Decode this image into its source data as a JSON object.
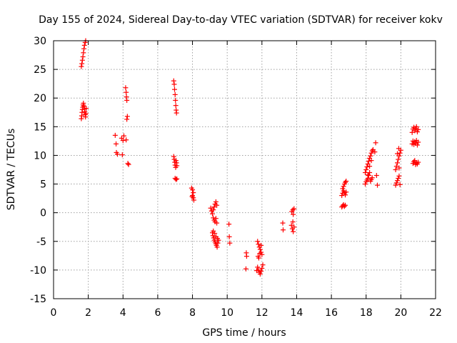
{
  "chart_data": {
    "type": "scatter",
    "title": "Day 155 of 2024, Sidereal Day-to-day VTEC variation (SDTVAR) for receiver kokv",
    "xlabel": "GPS time / hours",
    "ylabel": "SDTVAR / TECUs",
    "xlim": [
      0,
      22
    ],
    "ylim": [
      -15,
      30
    ],
    "xticks": [
      0,
      2,
      4,
      6,
      8,
      10,
      12,
      14,
      16,
      18,
      20,
      22
    ],
    "yticks": [
      -15,
      -10,
      -5,
      0,
      5,
      10,
      15,
      20,
      25,
      30
    ],
    "grid": true,
    "marker": "+",
    "series": [
      {
        "name": "SDTVAR",
        "color": "#ff0000",
        "points": [
          [
            1.6,
            25.5
          ],
          [
            1.63,
            26.0
          ],
          [
            1.66,
            26.6
          ],
          [
            1.69,
            27.2
          ],
          [
            1.72,
            27.9
          ],
          [
            1.75,
            28.6
          ],
          [
            1.78,
            29.2
          ],
          [
            1.82,
            29.7
          ],
          [
            1.85,
            30.0
          ],
          [
            1.6,
            16.4
          ],
          [
            1.62,
            16.9
          ],
          [
            1.64,
            17.5
          ],
          [
            1.66,
            18.0
          ],
          [
            1.68,
            18.4
          ],
          [
            1.7,
            18.8
          ],
          [
            1.72,
            19.1
          ],
          [
            1.75,
            18.6
          ],
          [
            1.78,
            18.1
          ],
          [
            1.8,
            17.6
          ],
          [
            1.82,
            17.1
          ],
          [
            1.84,
            16.7
          ],
          [
            1.86,
            17.3
          ],
          [
            1.88,
            18.2
          ],
          [
            3.55,
            13.5
          ],
          [
            3.6,
            12.0
          ],
          [
            3.62,
            10.5
          ],
          [
            3.68,
            10.2
          ],
          [
            3.92,
            13.0
          ],
          [
            3.96,
            10.1
          ],
          [
            4.0,
            12.6
          ],
          [
            4.05,
            13.4
          ],
          [
            4.15,
            21.8
          ],
          [
            4.18,
            21.0
          ],
          [
            4.2,
            20.2
          ],
          [
            4.22,
            19.6
          ],
          [
            4.18,
            12.7
          ],
          [
            4.22,
            16.3
          ],
          [
            4.25,
            16.8
          ],
          [
            4.28,
            8.6
          ],
          [
            4.32,
            8.4
          ],
          [
            6.92,
            23.0
          ],
          [
            6.95,
            22.4
          ],
          [
            6.97,
            21.5
          ],
          [
            7.0,
            20.6
          ],
          [
            7.02,
            19.6
          ],
          [
            7.04,
            18.7
          ],
          [
            7.06,
            17.9
          ],
          [
            7.08,
            17.4
          ],
          [
            6.92,
            9.8
          ],
          [
            6.95,
            9.3
          ],
          [
            6.98,
            8.8
          ],
          [
            7.0,
            8.3
          ],
          [
            7.03,
            7.9
          ],
          [
            7.05,
            9.1
          ],
          [
            7.08,
            8.7
          ],
          [
            7.1,
            8.2
          ],
          [
            7.0,
            6.0
          ],
          [
            7.05,
            5.8
          ],
          [
            7.1,
            5.9
          ],
          [
            7.95,
            4.3
          ],
          [
            8.0,
            4.0
          ],
          [
            8.05,
            3.5
          ],
          [
            8.0,
            3.0
          ],
          [
            8.05,
            2.6
          ],
          [
            8.08,
            2.2
          ],
          [
            7.98,
            2.8
          ],
          [
            9.05,
            0.8
          ],
          [
            9.1,
            0.3
          ],
          [
            9.15,
            -0.2
          ],
          [
            9.2,
            0.5
          ],
          [
            9.25,
            1.0
          ],
          [
            9.3,
            1.5
          ],
          [
            9.35,
            1.9
          ],
          [
            9.4,
            1.3
          ],
          [
            9.2,
            -0.9
          ],
          [
            9.25,
            -1.3
          ],
          [
            9.3,
            -1.6
          ],
          [
            9.35,
            -1.0
          ],
          [
            9.4,
            -1.8
          ],
          [
            9.15,
            -3.5
          ],
          [
            9.18,
            -4.0
          ],
          [
            9.22,
            -4.4
          ],
          [
            9.26,
            -4.8
          ],
          [
            9.3,
            -5.1
          ],
          [
            9.34,
            -5.4
          ],
          [
            9.38,
            -5.7
          ],
          [
            9.42,
            -6.0
          ],
          [
            9.46,
            -5.3
          ],
          [
            9.5,
            -4.8
          ],
          [
            9.2,
            -3.2
          ],
          [
            9.28,
            -3.6
          ],
          [
            9.36,
            -4.2
          ],
          [
            9.44,
            -4.5
          ],
          [
            10.1,
            -2.0
          ],
          [
            10.12,
            -4.2
          ],
          [
            10.15,
            -5.3
          ],
          [
            11.1,
            -7.0
          ],
          [
            11.12,
            -7.6
          ],
          [
            11.08,
            -9.8
          ],
          [
            11.75,
            -5.0
          ],
          [
            11.8,
            -5.5
          ],
          [
            11.85,
            -6.0
          ],
          [
            11.9,
            -6.4
          ],
          [
            11.95,
            -6.9
          ],
          [
            12.0,
            -7.3
          ],
          [
            11.78,
            -7.6
          ],
          [
            11.82,
            -7.9
          ],
          [
            11.88,
            -7.1
          ],
          [
            11.95,
            -5.7
          ],
          [
            11.75,
            -9.5
          ],
          [
            11.8,
            -10.0
          ],
          [
            11.85,
            -10.4
          ],
          [
            11.9,
            -10.7
          ],
          [
            11.95,
            -10.2
          ],
          [
            12.0,
            -9.7
          ],
          [
            12.05,
            -9.1
          ],
          [
            11.7,
            -10.1
          ],
          [
            13.2,
            -1.8
          ],
          [
            13.22,
            -3.0
          ],
          [
            13.7,
            -2.2
          ],
          [
            13.75,
            -2.8
          ],
          [
            13.8,
            -3.3
          ],
          [
            13.85,
            -2.5
          ],
          [
            13.78,
            -1.6
          ],
          [
            13.72,
            0.2
          ],
          [
            13.78,
            0.5
          ],
          [
            13.85,
            0.7
          ],
          [
            13.8,
            -0.3
          ],
          [
            16.6,
            1.0
          ],
          [
            16.65,
            1.2
          ],
          [
            16.7,
            1.4
          ],
          [
            16.75,
            1.1
          ],
          [
            16.8,
            1.3
          ],
          [
            16.6,
            3.0
          ],
          [
            16.65,
            3.4
          ],
          [
            16.7,
            3.8
          ],
          [
            16.75,
            3.5
          ],
          [
            16.8,
            3.1
          ],
          [
            16.85,
            3.6
          ],
          [
            16.65,
            4.2
          ],
          [
            16.7,
            4.6
          ],
          [
            16.75,
            5.0
          ],
          [
            16.8,
            5.3
          ],
          [
            16.85,
            5.5
          ],
          [
            17.95,
            5.0
          ],
          [
            18.0,
            5.4
          ],
          [
            18.05,
            5.7
          ],
          [
            18.1,
            6.0
          ],
          [
            18.15,
            6.5
          ],
          [
            18.2,
            7.0
          ],
          [
            18.25,
            5.5
          ],
          [
            18.3,
            5.8
          ],
          [
            18.35,
            6.1
          ],
          [
            17.95,
            7.0
          ],
          [
            18.0,
            7.5
          ],
          [
            18.05,
            8.0
          ],
          [
            18.1,
            8.5
          ],
          [
            18.15,
            9.0
          ],
          [
            18.2,
            9.5
          ],
          [
            18.25,
            9.9
          ],
          [
            18.3,
            10.4
          ],
          [
            18.35,
            10.8
          ],
          [
            18.4,
            11.0
          ],
          [
            18.1,
            6.6
          ],
          [
            18.2,
            8.1
          ],
          [
            18.3,
            9.1
          ],
          [
            18.5,
            10.6
          ],
          [
            18.55,
            12.2
          ],
          [
            18.6,
            6.5
          ],
          [
            18.65,
            4.8
          ],
          [
            19.7,
            4.8
          ],
          [
            19.75,
            5.2
          ],
          [
            19.8,
            5.6
          ],
          [
            19.85,
            6.0
          ],
          [
            19.9,
            6.4
          ],
          [
            19.95,
            4.9
          ],
          [
            19.7,
            7.5
          ],
          [
            19.75,
            8.1
          ],
          [
            19.8,
            8.7
          ],
          [
            19.85,
            9.3
          ],
          [
            19.9,
            9.9
          ],
          [
            19.95,
            10.4
          ],
          [
            20.0,
            10.9
          ],
          [
            19.8,
            10.3
          ],
          [
            19.9,
            7.8
          ],
          [
            19.88,
            11.2
          ],
          [
            20.65,
            14.0
          ],
          [
            20.7,
            14.6
          ],
          [
            20.75,
            14.9
          ],
          [
            20.8,
            14.3
          ],
          [
            20.85,
            14.7
          ],
          [
            20.9,
            15.0
          ],
          [
            20.95,
            14.1
          ],
          [
            21.0,
            14.5
          ],
          [
            20.65,
            12.0
          ],
          [
            20.7,
            12.5
          ],
          [
            20.75,
            11.9
          ],
          [
            20.8,
            12.4
          ],
          [
            20.85,
            12.1
          ],
          [
            20.9,
            12.6
          ],
          [
            20.95,
            11.8
          ],
          [
            21.0,
            12.3
          ],
          [
            20.7,
            8.6
          ],
          [
            20.75,
            8.9
          ],
          [
            20.8,
            9.1
          ],
          [
            20.85,
            8.4
          ],
          [
            20.9,
            8.7
          ],
          [
            20.95,
            8.5
          ],
          [
            21.0,
            8.8
          ]
        ]
      }
    ]
  }
}
